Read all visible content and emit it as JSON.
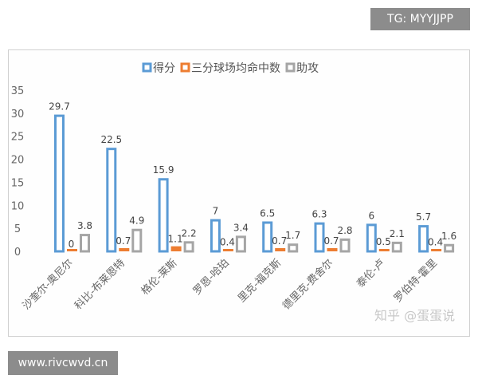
{
  "watermarks": {
    "top_right": "TG: MYYJJPP",
    "bottom_left": "www.rivcwvd.cn",
    "in_chart": "知乎 @蛋蛋说"
  },
  "chart_data": {
    "type": "bar",
    "title": "",
    "categories": [
      "沙奎尔-奥尼尔",
      "科比-布莱恩特",
      "格伦-莱斯",
      "罗恩-哈珀",
      "里克-福克斯",
      "德里克-费舍尔",
      "泰伦-卢",
      "罗伯特-霍里"
    ],
    "series": [
      {
        "name": "得分",
        "color": "#5b9bd5",
        "values": [
          29.7,
          22.5,
          15.9,
          7,
          6.5,
          6.3,
          6,
          5.7
        ]
      },
      {
        "name": "三分球场均命中数",
        "color": "#ed7d31",
        "values": [
          0,
          0.7,
          1.1,
          0.4,
          0.7,
          0.7,
          0.5,
          0.4
        ]
      },
      {
        "name": "助攻",
        "color": "#a5a5a5",
        "values": [
          3.8,
          4.9,
          2.2,
          3.4,
          1.7,
          2.8,
          2.1,
          1.6
        ]
      }
    ],
    "ylim": [
      0,
      35
    ],
    "yticks": [
      0,
      5,
      10,
      15,
      20,
      25,
      30,
      35
    ],
    "legend": "top",
    "grid": false,
    "bar_style": "hollow outline"
  }
}
